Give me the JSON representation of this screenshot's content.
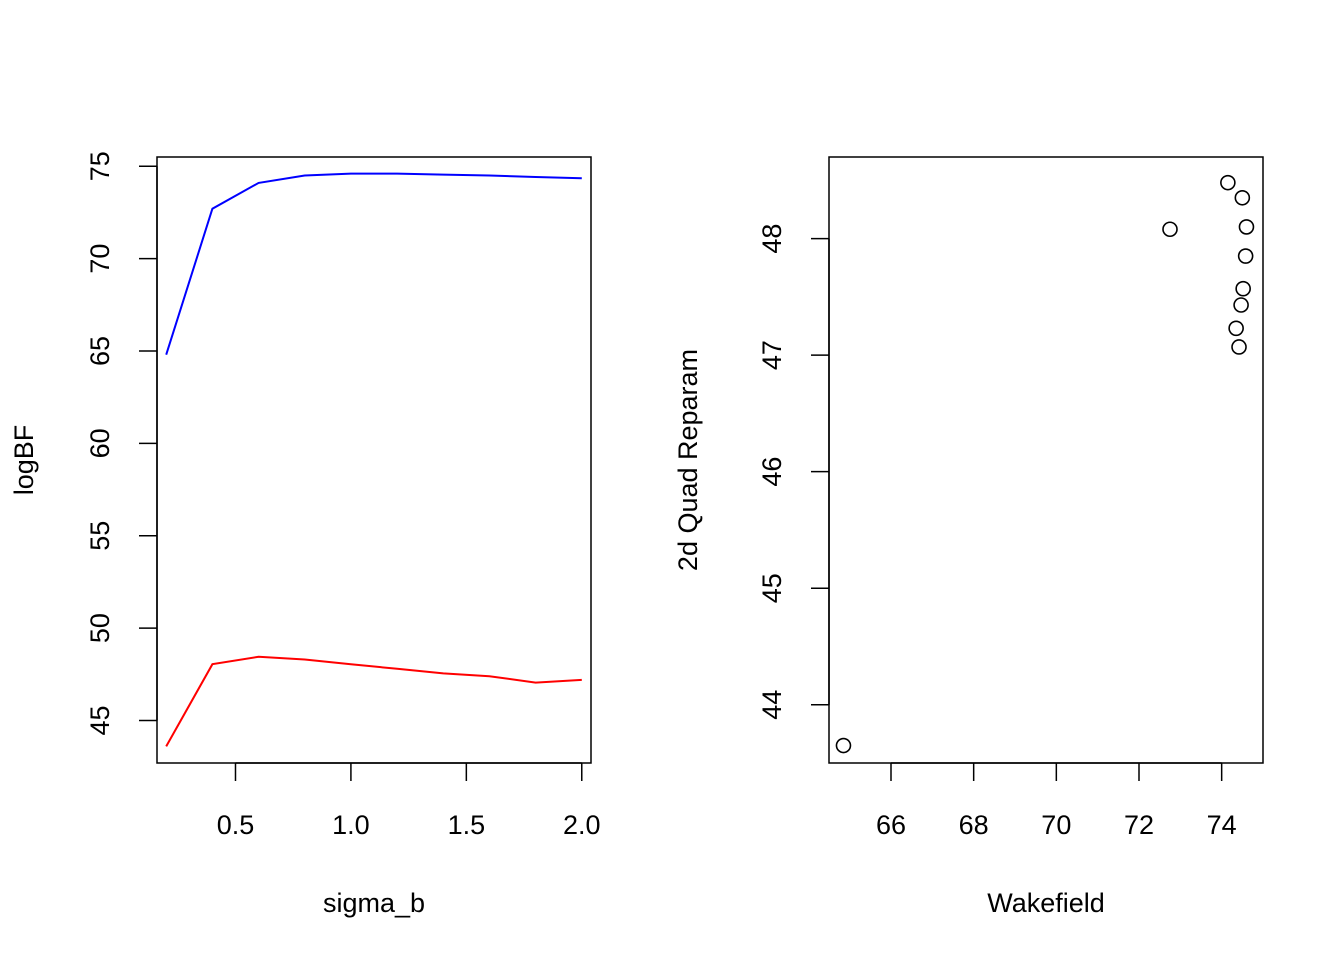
{
  "chart_data": [
    {
      "type": "line",
      "title": "",
      "xlabel": "sigma_b",
      "ylabel": "logBF",
      "xlim": [
        0.16,
        2.04
      ],
      "ylim": [
        42.7,
        75.5
      ],
      "x_ticks": [
        "0.5",
        "1.0",
        "1.5",
        "2.0"
      ],
      "y_ticks": [
        "45",
        "50",
        "55",
        "60",
        "65",
        "70",
        "75"
      ],
      "grid": false,
      "legend": "none",
      "x": [
        0.2,
        0.4,
        0.6,
        0.8,
        1.0,
        1.2,
        1.4,
        1.6,
        1.8,
        2.0
      ],
      "series": [
        {
          "color": "#0000ff",
          "values": [
            64.8,
            72.7,
            74.1,
            74.5,
            74.6,
            74.6,
            74.55,
            74.5,
            74.42,
            74.35
          ]
        },
        {
          "color": "#ff0000",
          "values": [
            43.6,
            48.05,
            48.45,
            48.3,
            48.05,
            47.8,
            47.55,
            47.4,
            47.05,
            47.2
          ]
        }
      ]
    },
    {
      "type": "scatter",
      "title": "",
      "xlabel": "Wakefield",
      "ylabel": "2d Quad Reparam",
      "xlim": [
        64.5,
        75.0
      ],
      "ylim": [
        43.5,
        48.7
      ],
      "x_ticks": [
        "66",
        "68",
        "70",
        "72",
        "74"
      ],
      "y_ticks": [
        "44",
        "45",
        "46",
        "47",
        "48"
      ],
      "grid": false,
      "legend": "none",
      "marker": "open-circle",
      "points": [
        {
          "x": 64.85,
          "y": 43.65
        },
        {
          "x": 72.75,
          "y": 48.08
        },
        {
          "x": 74.15,
          "y": 48.48
        },
        {
          "x": 74.5,
          "y": 48.35
        },
        {
          "x": 74.6,
          "y": 48.1
        },
        {
          "x": 74.58,
          "y": 47.85
        },
        {
          "x": 74.52,
          "y": 47.57
        },
        {
          "x": 74.47,
          "y": 47.43
        },
        {
          "x": 74.35,
          "y": 47.23
        },
        {
          "x": 74.42,
          "y": 47.07
        }
      ]
    }
  ]
}
